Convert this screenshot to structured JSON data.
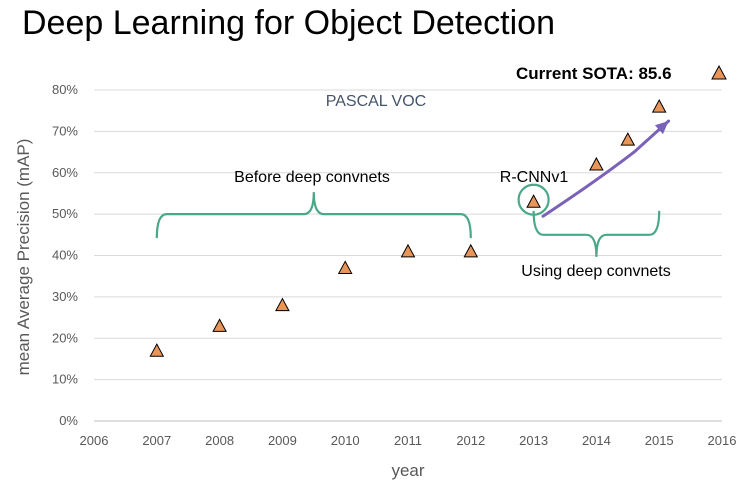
{
  "slide": {
    "title": "Deep Learning for Object Detection",
    "sota_label": "Current SOTA: 85.6"
  },
  "colors": {
    "marker_fill": "#e8955a",
    "marker_stroke": "#000000",
    "bracket": "#4aa886",
    "trend_arrow": "#7a62b8",
    "grid": "#d9d9d9",
    "axis_text": "#595959"
  },
  "chart_data": {
    "type": "scatter",
    "title": "PASCAL VOC",
    "xlabel": "year",
    "ylabel": "mean Average Precision (mAP)",
    "xlim": [
      2006,
      2016
    ],
    "ylim": [
      0,
      0.8
    ],
    "x_ticks": [
      "2006",
      "2007",
      "2008",
      "2009",
      "2010",
      "2011",
      "2012",
      "2013",
      "2014",
      "2015",
      "2016"
    ],
    "y_ticks": [
      "0%",
      "10%",
      "20%",
      "30%",
      "40%",
      "50%",
      "60%",
      "70%",
      "80%"
    ],
    "grid": "horizontal",
    "marker": "triangle",
    "points": [
      {
        "x": 2007,
        "y": 0.17
      },
      {
        "x": 2008,
        "y": 0.23
      },
      {
        "x": 2009,
        "y": 0.28
      },
      {
        "x": 2010,
        "y": 0.37
      },
      {
        "x": 2011,
        "y": 0.41
      },
      {
        "x": 2012,
        "y": 0.41
      },
      {
        "x": 2013,
        "y": 0.53
      },
      {
        "x": 2014,
        "y": 0.62
      },
      {
        "x": 2014.5,
        "y": 0.68
      },
      {
        "x": 2015,
        "y": 0.76
      }
    ],
    "annotations": {
      "before": "Before deep convnets",
      "using": "Using deep convnets",
      "rcnn": "R-CNNv1"
    },
    "before_bracket": {
      "x_start": 2007,
      "x_end": 2012,
      "y": 0.5
    },
    "using_bracket": {
      "x_start": 2013,
      "x_end": 2015,
      "y": 0.45
    },
    "highlight_point": {
      "x": 2013,
      "y": 0.53
    },
    "trend_arrow": [
      {
        "x": 2013.15,
        "y": 0.495
      },
      {
        "x": 2014,
        "y": 0.58
      },
      {
        "x": 2014.6,
        "y": 0.65
      },
      {
        "x": 2015.15,
        "y": 0.725
      }
    ]
  }
}
